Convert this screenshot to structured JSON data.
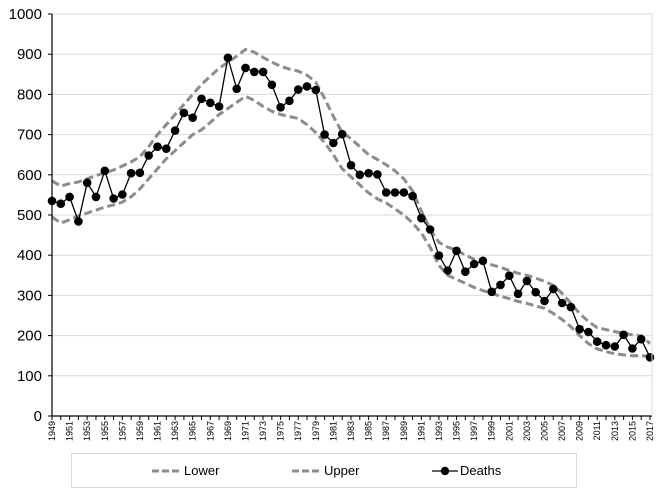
{
  "chart_data": {
    "type": "line",
    "title": "",
    "xlabel": "",
    "ylabel": "",
    "ylim": [
      0,
      1000
    ],
    "yticks": [
      0,
      100,
      200,
      300,
      400,
      500,
      600,
      700,
      800,
      900,
      1000
    ],
    "grid": true,
    "legend_position": "bottom",
    "x": [
      1949,
      1950,
      1951,
      1952,
      1953,
      1954,
      1955,
      1956,
      1957,
      1958,
      1959,
      1960,
      1961,
      1962,
      1963,
      1964,
      1965,
      1966,
      1967,
      1968,
      1969,
      1970,
      1971,
      1972,
      1973,
      1974,
      1975,
      1976,
      1977,
      1978,
      1979,
      1980,
      1981,
      1982,
      1983,
      1984,
      1985,
      1986,
      1987,
      1988,
      1989,
      1990,
      1991,
      1992,
      1993,
      1994,
      1995,
      1996,
      1997,
      1998,
      1999,
      2000,
      2001,
      2002,
      2003,
      2004,
      2005,
      2006,
      2007,
      2008,
      2009,
      2010,
      2011,
      2012,
      2013,
      2014,
      2015,
      2016,
      2017
    ],
    "xtick_labels": [
      "1949",
      "1951",
      "1953",
      "1955",
      "1957",
      "1959",
      "1961",
      "1963",
      "1965",
      "1967",
      "1969",
      "1971",
      "1973",
      "1975",
      "1977",
      "1979",
      "1981",
      "1983",
      "1985",
      "1987",
      "1989",
      "1991",
      "1993",
      "1995",
      "1997",
      "1999",
      "2001",
      "2003",
      "2005",
      "2007",
      "2009",
      "2011",
      "2013",
      "2015",
      "2017"
    ],
    "series": [
      {
        "name": "Lower",
        "style": "dashed",
        "color": "#8c8c8c",
        "values": [
          495,
          480,
          488,
          498,
          505,
          512,
          520,
          525,
          532,
          545,
          565,
          590,
          615,
          640,
          660,
          680,
          700,
          712,
          730,
          750,
          765,
          780,
          795,
          785,
          770,
          758,
          750,
          745,
          740,
          725,
          705,
          680,
          650,
          615,
          595,
          575,
          555,
          540,
          530,
          515,
          500,
          480,
          455,
          420,
          375,
          350,
          340,
          330,
          320,
          312,
          305,
          298,
          292,
          285,
          280,
          274,
          268,
          255,
          240,
          222,
          200,
          180,
          167,
          160,
          155,
          152,
          150,
          150,
          148
        ]
      },
      {
        "name": "Upper",
        "style": "dashed",
        "color": "#8c8c8c",
        "values": [
          585,
          572,
          578,
          582,
          590,
          598,
          605,
          612,
          622,
          632,
          645,
          670,
          700,
          725,
          750,
          775,
          800,
          825,
          845,
          865,
          880,
          895,
          912,
          905,
          892,
          880,
          870,
          863,
          858,
          848,
          830,
          790,
          745,
          705,
          690,
          670,
          650,
          638,
          625,
          610,
          590,
          560,
          510,
          465,
          432,
          420,
          413,
          400,
          390,
          383,
          376,
          370,
          362,
          355,
          350,
          343,
          335,
          325,
          305,
          280,
          255,
          235,
          220,
          215,
          210,
          206,
          202,
          200,
          180
        ]
      },
      {
        "name": "Deaths",
        "style": "solid-marker",
        "color": "#000000",
        "values": [
          535,
          528,
          545,
          484,
          580,
          545,
          610,
          541,
          551,
          604,
          605,
          648,
          670,
          665,
          710,
          754,
          742,
          789,
          779,
          770,
          891,
          814,
          866,
          856,
          856,
          824,
          768,
          784,
          812,
          820,
          811,
          700,
          679,
          701,
          624,
          600,
          604,
          601,
          556,
          556,
          556,
          547,
          492,
          464,
          399,
          362,
          411,
          359,
          378,
          386,
          309,
          326,
          349,
          304,
          336,
          308,
          286,
          316,
          281,
          271,
          216,
          209,
          185,
          176,
          173,
          202,
          168,
          191,
          146
        ]
      }
    ]
  },
  "legend": {
    "lower_label": "Lower",
    "upper_label": "Upper",
    "deaths_label": "Deaths"
  }
}
